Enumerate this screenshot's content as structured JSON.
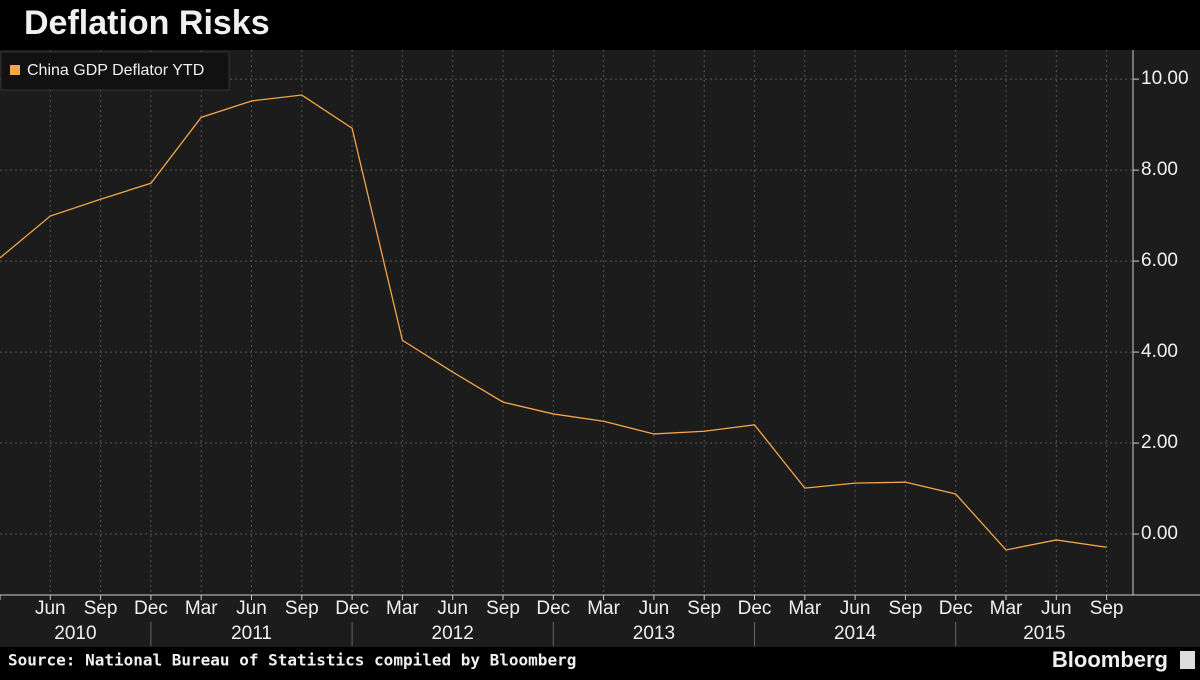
{
  "chart_data": {
    "type": "line",
    "title": "Deflation Risks",
    "source": "Source: National Bureau of Statistics compiled by Bloomberg",
    "brand": "Bloomberg",
    "categories": [
      null,
      "Jun",
      "Sep",
      "Dec",
      "Mar",
      "Jun",
      "Sep",
      "Dec",
      "Mar",
      "Jun",
      "Sep",
      "Dec",
      "Mar",
      "Jun",
      "Sep",
      "Dec",
      "Mar",
      "Jun",
      "Sep",
      "Dec",
      "Mar",
      "Jun",
      "Sep"
    ],
    "category_groups": [
      "2010",
      "2011",
      "2012",
      "2013",
      "2014",
      "2015"
    ],
    "series": [
      {
        "name": "China GDP Deflator YTD",
        "color": "#f5a54a",
        "values": [
          6.07,
          6.99,
          7.36,
          7.71,
          9.16,
          9.52,
          9.65,
          8.92,
          4.26,
          3.56,
          2.9,
          2.64,
          2.48,
          2.2,
          2.26,
          2.4,
          1.01,
          1.12,
          1.14,
          0.88,
          -0.35,
          -0.13,
          -0.29
        ]
      }
    ],
    "ylim": [
      -1.34,
      10.64
    ],
    "yticks": [
      {
        "value": 0,
        "label": "0.00"
      },
      {
        "value": 2,
        "label": "2.00"
      },
      {
        "value": 4,
        "label": "4.00"
      },
      {
        "value": 6,
        "label": "6.00"
      },
      {
        "value": 8,
        "label": "8.00"
      },
      {
        "value": 10,
        "label": "10.00"
      }
    ],
    "grid": true,
    "legend": "top-left"
  }
}
